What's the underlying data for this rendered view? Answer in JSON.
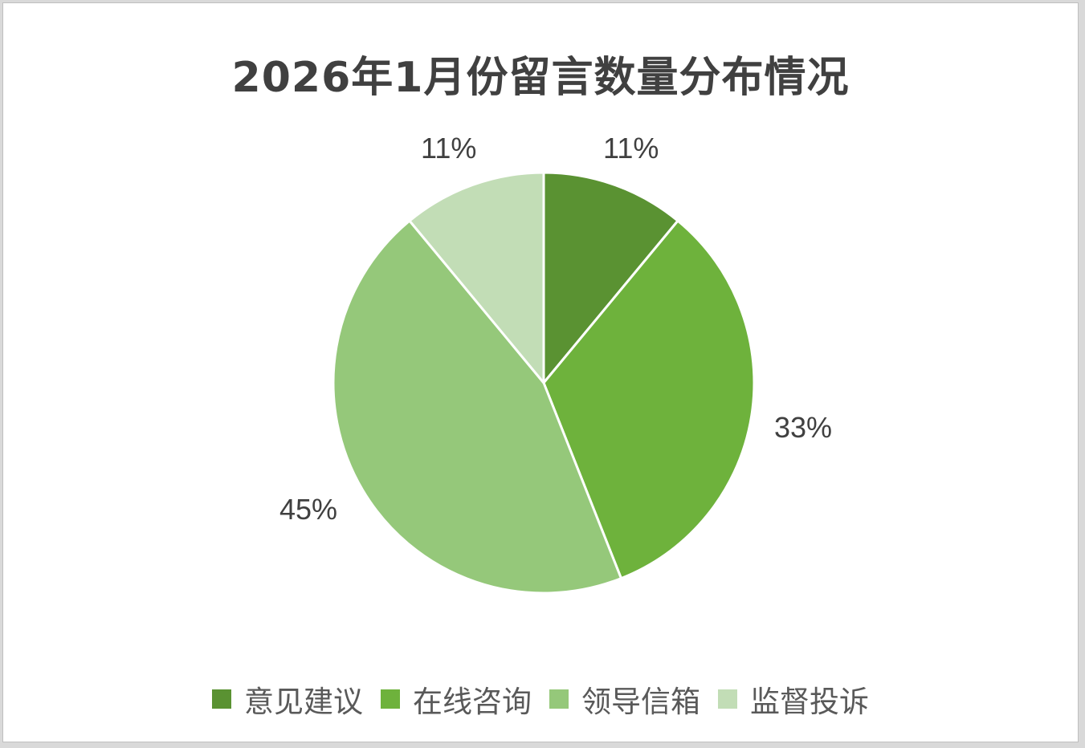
{
  "chart_data": {
    "type": "pie",
    "title": "2026年1月份留言数量分布情况",
    "categories": [
      "意见建议",
      "在线咨询",
      "领导信箱",
      "监督投诉"
    ],
    "values": [
      11,
      33,
      45,
      11
    ],
    "labels": [
      "11%",
      "33%",
      "45%",
      "11%"
    ],
    "colors": [
      "#5a9232",
      "#6eb23c",
      "#95c87a",
      "#c2ddb6"
    ],
    "legend_position": "bottom",
    "start_angle": 0,
    "direction": "clockwise"
  },
  "title": "2026年1月份留言数量分布情况",
  "legend": [
    {
      "label": "意见建议",
      "color": "#5a9232"
    },
    {
      "label": "在线咨询",
      "color": "#6eb23c"
    },
    {
      "label": "领导信箱",
      "color": "#95c87a"
    },
    {
      "label": "监督投诉",
      "color": "#c2ddb6"
    }
  ],
  "data_labels": [
    "11%",
    "33%",
    "45%",
    "11%"
  ]
}
